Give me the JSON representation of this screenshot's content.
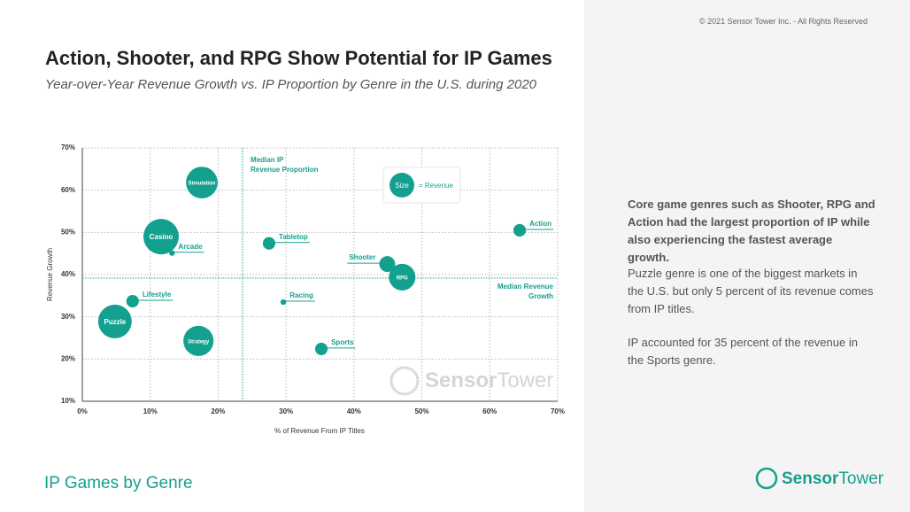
{
  "copyright": "© 2021 Sensor Tower Inc. - All Rights Reserved",
  "footer": "IP Games by Genre",
  "brand": [
    "Sensor",
    "Tower"
  ],
  "notes": [
    "Core game genres such as Shooter, RPG and Action had the largest proportion of IP while also experiencing the fastest average growth.",
    "Puzzle genre is one of the biggest markets in the U.S. but only 5 percent of its revenue comes from IP titles.",
    "IP accounted for 35 percent of the revenue in the Sports genre."
  ],
  "chart_data": {
    "type": "scatter",
    "title": "Action, Shooter, and RPG Show Potential for IP Games",
    "subtitle": "Year-over-Year Revenue Growth vs. IP Proportion by Genre in the U.S. during 2020",
    "x_label": "% of Revenue From IP Titles",
    "y_label": "Revenue Growth",
    "color": "#14a08f",
    "grid": true,
    "labels": [
      "Simulation",
      "Casino",
      "Arcade",
      "Tabletop",
      "Action",
      "Shooter",
      "RPG",
      "Lifestyle",
      "Racing",
      "Puzzle",
      "Strategy",
      "Sports"
    ],
    "x": [
      17.6,
      11.6,
      13.2,
      27.5,
      64.4,
      44.9,
      47.1,
      7.4,
      29.6,
      4.8,
      17.1,
      35.2
    ],
    "values": [
      61.8,
      49.0,
      45.1,
      47.4,
      50.5,
      42.5,
      39.4,
      33.7,
      33.5,
      28.9,
      24.3,
      22.4
    ],
    "sizes": [
      320,
      400,
      10,
      50,
      50,
      80,
      225,
      50,
      10,
      360,
      290,
      50
    ],
    "xlim": [
      0,
      70
    ],
    "ylim": [
      10,
      70
    ],
    "xticks": [
      {
        "value": 0,
        "label": "0%"
      },
      {
        "value": 10,
        "label": "10%"
      },
      {
        "value": 20,
        "label": "20%"
      },
      {
        "value": 30,
        "label": "30%"
      },
      {
        "value": 40,
        "label": "40%"
      },
      {
        "value": 50,
        "label": "50%"
      },
      {
        "value": 60,
        "label": "60%"
      },
      {
        "value": 70,
        "label": "70%"
      }
    ],
    "yticks": [
      {
        "value": 10,
        "label": "10%"
      },
      {
        "value": 20,
        "label": "20%"
      },
      {
        "value": 30,
        "label": "30%"
      },
      {
        "value": 40,
        "label": "40%"
      },
      {
        "value": 50,
        "label": "50%"
      },
      {
        "value": 60,
        "label": "60%"
      },
      {
        "value": 70,
        "label": "70%"
      }
    ],
    "median_x": {
      "value": 23.6,
      "lines": [
        "Median IP",
        "Revenue Proportion"
      ]
    },
    "median_y": {
      "value": 39.2,
      "lines": [
        "Median Revenue",
        "Growth"
      ]
    },
    "legend": {
      "symbol": "Size",
      "text": "= Revenue"
    }
  }
}
